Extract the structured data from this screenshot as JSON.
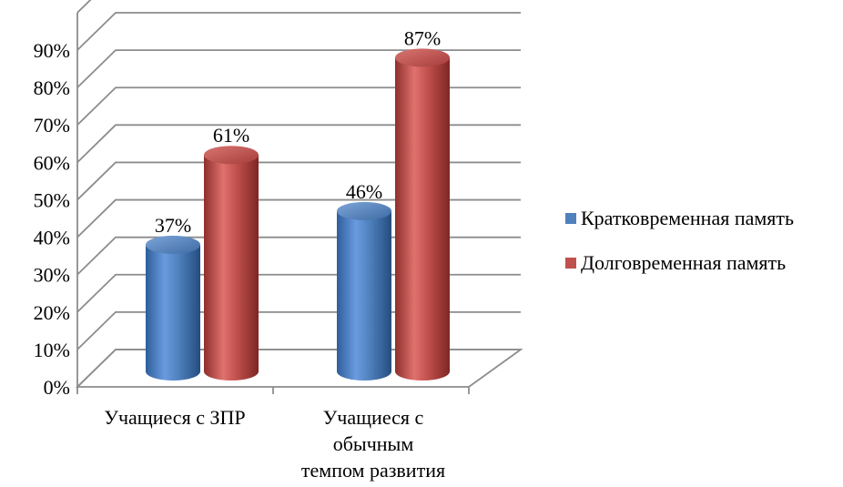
{
  "chart_data": {
    "type": "bar",
    "style": "3d-cylinder",
    "categories": [
      [
        "Учащиеся с ЗПР"
      ],
      [
        "Учащиеся с",
        "обычным",
        "темпом развития"
      ]
    ],
    "series": [
      {
        "name": "Кратковременная память",
        "values": [
          37,
          46
        ],
        "labels": [
          "37%",
          "46%"
        ],
        "color": "#4f81bd"
      },
      {
        "name": "Долговременная память",
        "values": [
          61,
          87
        ],
        "labels": [
          "61%",
          "87%"
        ],
        "color": "#c0504d"
      }
    ],
    "yticks": [
      "0%",
      "10%",
      "20%",
      "30%",
      "40%",
      "50%",
      "60%",
      "70%",
      "80%",
      "90%"
    ],
    "ylim": [
      0,
      90
    ],
    "grid": true,
    "legend_position": "right"
  }
}
